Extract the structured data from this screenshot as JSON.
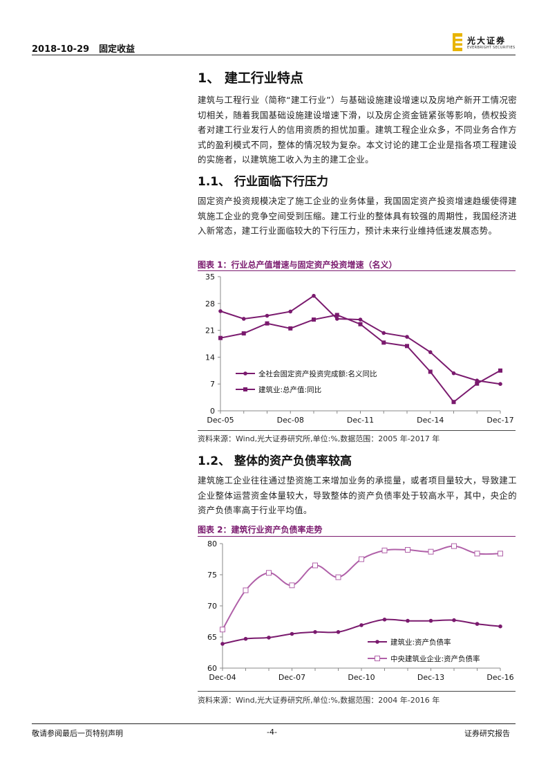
{
  "header": {
    "date": "2018-10-29",
    "section": "固定收益",
    "logo_cn": "光大证券",
    "logo_en": "EVERBRIGHT SECURITIES"
  },
  "heading1": "1、 建工行业特点",
  "intro": "建筑与工程行业（简称“建工行业”）与基础设施建设增速以及房地产新开工情况密切相关，随着我国基础设施建设增速下滑，以及房企资金链紧张等影响，债权投资者对建工行业发行人的信用资质的担忧加重。建筑工程企业众多，不同业务合作方式的盈利模式不同，整体的情况较为复杂。本文讨论的建工企业是指各项工程建设的实施者，以建筑施工收入为主的建工企业。",
  "heading1_1": "1.1、 行业面临下行压力",
  "para1_1": "固定资产投资规模决定了施工企业的业务体量，我国固定资产投资增速趋缓使得建筑施工企业的竞争空间受到压缩。建工行业的整体具有较强的周期性，我国经济进入新常态，建工行业面临较大的下行压力，预计未来行业维持低速发展态势。",
  "heading1_2": "1.2、 整体的资产负债率较高",
  "para1_2": "建筑施工企业往往通过垫资施工来增加业务的承揽量，或者项目量较大，导致建工企业整体运营资金体量较大，导致整体的资产负债率处于较高水平，其中，央企的资产负债率高于行业平均值。",
  "fig1": {
    "title": "图表 1：行业总产值增速与固定资产投资增速（名义）",
    "source": "资料来源：Wind,光大证券研究所,单位:%,数据范围：2005 年-2017 年"
  },
  "fig2": {
    "title": "图表 2：建筑行业资产负债率走势",
    "source": "资料来源：Wind,光大证券研究所,单位:%,数据范围：2004 年-2016 年"
  },
  "chart_data": [
    {
      "type": "line",
      "x": [
        "Dec-05",
        "Dec-06",
        "Dec-07",
        "Dec-08",
        "Dec-09",
        "Dec-10",
        "Dec-11",
        "Dec-12",
        "Dec-13",
        "Dec-14",
        "Dec-15",
        "Dec-16",
        "Dec-17"
      ],
      "xtick_labels": [
        "Dec-05",
        "Dec-08",
        "Dec-11",
        "Dec-14",
        "Dec-17"
      ],
      "yticks": [
        0,
        7,
        14,
        21,
        28,
        35
      ],
      "ylim": [
        0,
        35
      ],
      "series": [
        {
          "name": "全社会固定资产投资完成额:名义同比",
          "marker": "circle",
          "values": [
            26.0,
            24.0,
            24.8,
            25.9,
            30.0,
            24.0,
            23.8,
            20.3,
            19.3,
            15.3,
            9.8,
            7.9,
            7.0
          ]
        },
        {
          "name": "建筑业:总产值:同比",
          "marker": "square",
          "values": [
            19.0,
            20.2,
            22.8,
            21.5,
            23.8,
            25.0,
            22.6,
            17.8,
            16.9,
            10.2,
            2.3,
            7.1,
            10.5
          ]
        }
      ],
      "legend": "inside-lower-left",
      "grid": false,
      "color": "#7a1a6e"
    },
    {
      "type": "line",
      "x": [
        "Dec-04",
        "Dec-05",
        "Dec-06",
        "Dec-07",
        "Dec-08",
        "Dec-09",
        "Dec-10",
        "Dec-11",
        "Dec-12",
        "Dec-13",
        "Dec-14",
        "Dec-15",
        "Dec-16"
      ],
      "xtick_labels": [
        "Dec-04",
        "Dec-07",
        "Dec-10",
        "Dec-13",
        "Dec-16"
      ],
      "yticks": [
        60,
        65,
        70,
        75,
        80
      ],
      "ylim": [
        60,
        80
      ],
      "series": [
        {
          "name": "建筑业:资产负债率",
          "marker": "circle",
          "values": [
            63.9,
            64.7,
            64.9,
            65.5,
            65.8,
            65.8,
            66.9,
            67.8,
            67.6,
            67.6,
            67.7,
            67.1,
            66.7
          ]
        },
        {
          "name": "中央建筑业企业:资产负债率",
          "marker": "square-open",
          "values": [
            66.2,
            72.5,
            75.3,
            73.3,
            76.5,
            74.6,
            77.5,
            78.9,
            79.0,
            78.7,
            79.6,
            78.4,
            78.4
          ]
        }
      ],
      "legend": "inside-lower-right",
      "grid": false,
      "colors": [
        "#7a1a6e",
        "#b060a8"
      ]
    }
  ],
  "footer": {
    "left": "敬请参阅最后一页特别声明",
    "center": "-4-",
    "right": "证券研究报告"
  }
}
